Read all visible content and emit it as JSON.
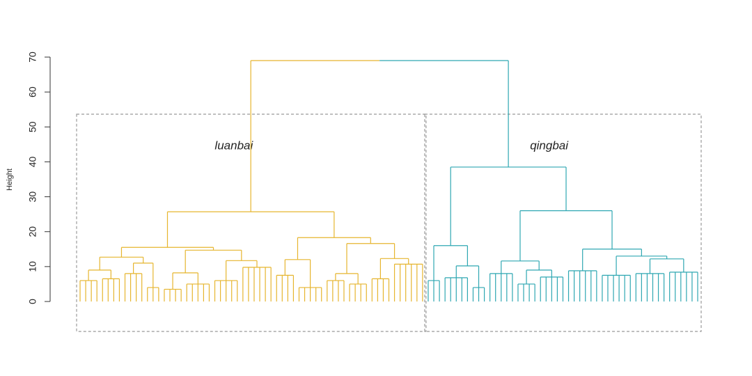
{
  "chart_data": {
    "type": "dendrogram",
    "ylabel": "Height",
    "ylim": [
      0,
      70
    ],
    "yticks": [
      0,
      10,
      20,
      30,
      40,
      50,
      60,
      70
    ],
    "root_height": 69,
    "clusters": [
      {
        "name": "luanbai",
        "color": "#e6b52e",
        "tree": {
          "height": 25.7,
          "children": [
            {
              "height": 15.5,
              "children": [
                {
                  "height": 12.7,
                  "children": [
                    {
                      "height": 9,
                      "children": [
                        {
                          "height": 6,
                          "leaves": 4
                        },
                        {
                          "height": 6.5,
                          "leaves": 4
                        }
                      ]
                    },
                    {
                      "height": 11,
                      "children": [
                        {
                          "height": 8,
                          "leaves": 4
                        },
                        {
                          "height": 4,
                          "leaves": 3
                        }
                      ]
                    }
                  ]
                },
                {
                  "height": 14.7,
                  "children": [
                    {
                      "height": 8.2,
                      "children": [
                        {
                          "height": 3.5,
                          "leaves": 4
                        },
                        {
                          "height": 5,
                          "leaves": 5
                        }
                      ]
                    },
                    {
                      "height": 11.7,
                      "children": [
                        {
                          "height": 6,
                          "leaves": 5
                        },
                        {
                          "height": 9.8,
                          "leaves": 6
                        }
                      ]
                    }
                  ]
                }
              ]
            },
            {
              "height": 18.3,
              "children": [
                {
                  "height": 12,
                  "children": [
                    {
                      "height": 7.5,
                      "leaves": 4
                    },
                    {
                      "height": 4,
                      "leaves": 5
                    }
                  ]
                },
                {
                  "height": 16.6,
                  "children": [
                    {
                      "height": 8,
                      "children": [
                        {
                          "height": 6,
                          "leaves": 4
                        },
                        {
                          "height": 5,
                          "leaves": 4
                        }
                      ]
                    },
                    {
                      "height": 12.3,
                      "children": [
                        {
                          "height": 6.5,
                          "leaves": 4
                        },
                        {
                          "height": 10.7,
                          "leaves": 6
                        }
                      ]
                    }
                  ]
                }
              ]
            }
          ]
        }
      },
      {
        "name": "qingbai",
        "color": "#2ea7b2",
        "tree": {
          "height": 38.5,
          "children": [
            {
              "height": 16,
              "children": [
                {
                  "height": 6,
                  "leaves": 3
                },
                {
                  "height": 10.2,
                  "children": [
                    {
                      "height": 6.8,
                      "leaves": 5
                    },
                    {
                      "height": 4,
                      "leaves": 3
                    }
                  ]
                }
              ]
            },
            {
              "height": 26,
              "children": [
                {
                  "height": 11.6,
                  "children": [
                    {
                      "height": 8,
                      "leaves": 5
                    },
                    {
                      "height": 9,
                      "children": [
                        {
                          "height": 5,
                          "leaves": 4
                        },
                        {
                          "height": 7,
                          "leaves": 5
                        }
                      ]
                    }
                  ]
                },
                {
                  "height": 15,
                  "children": [
                    {
                      "height": 8.8,
                      "leaves": 6
                    },
                    {
                      "height": 13,
                      "children": [
                        {
                          "height": 7.5,
                          "leaves": 6
                        },
                        {
                          "height": 12.2,
                          "children": [
                            {
                              "height": 8,
                              "leaves": 6
                            },
                            {
                              "height": 8.4,
                              "leaves": 6
                            }
                          ]
                        }
                      ]
                    }
                  ]
                }
              ]
            }
          ]
        }
      }
    ]
  }
}
